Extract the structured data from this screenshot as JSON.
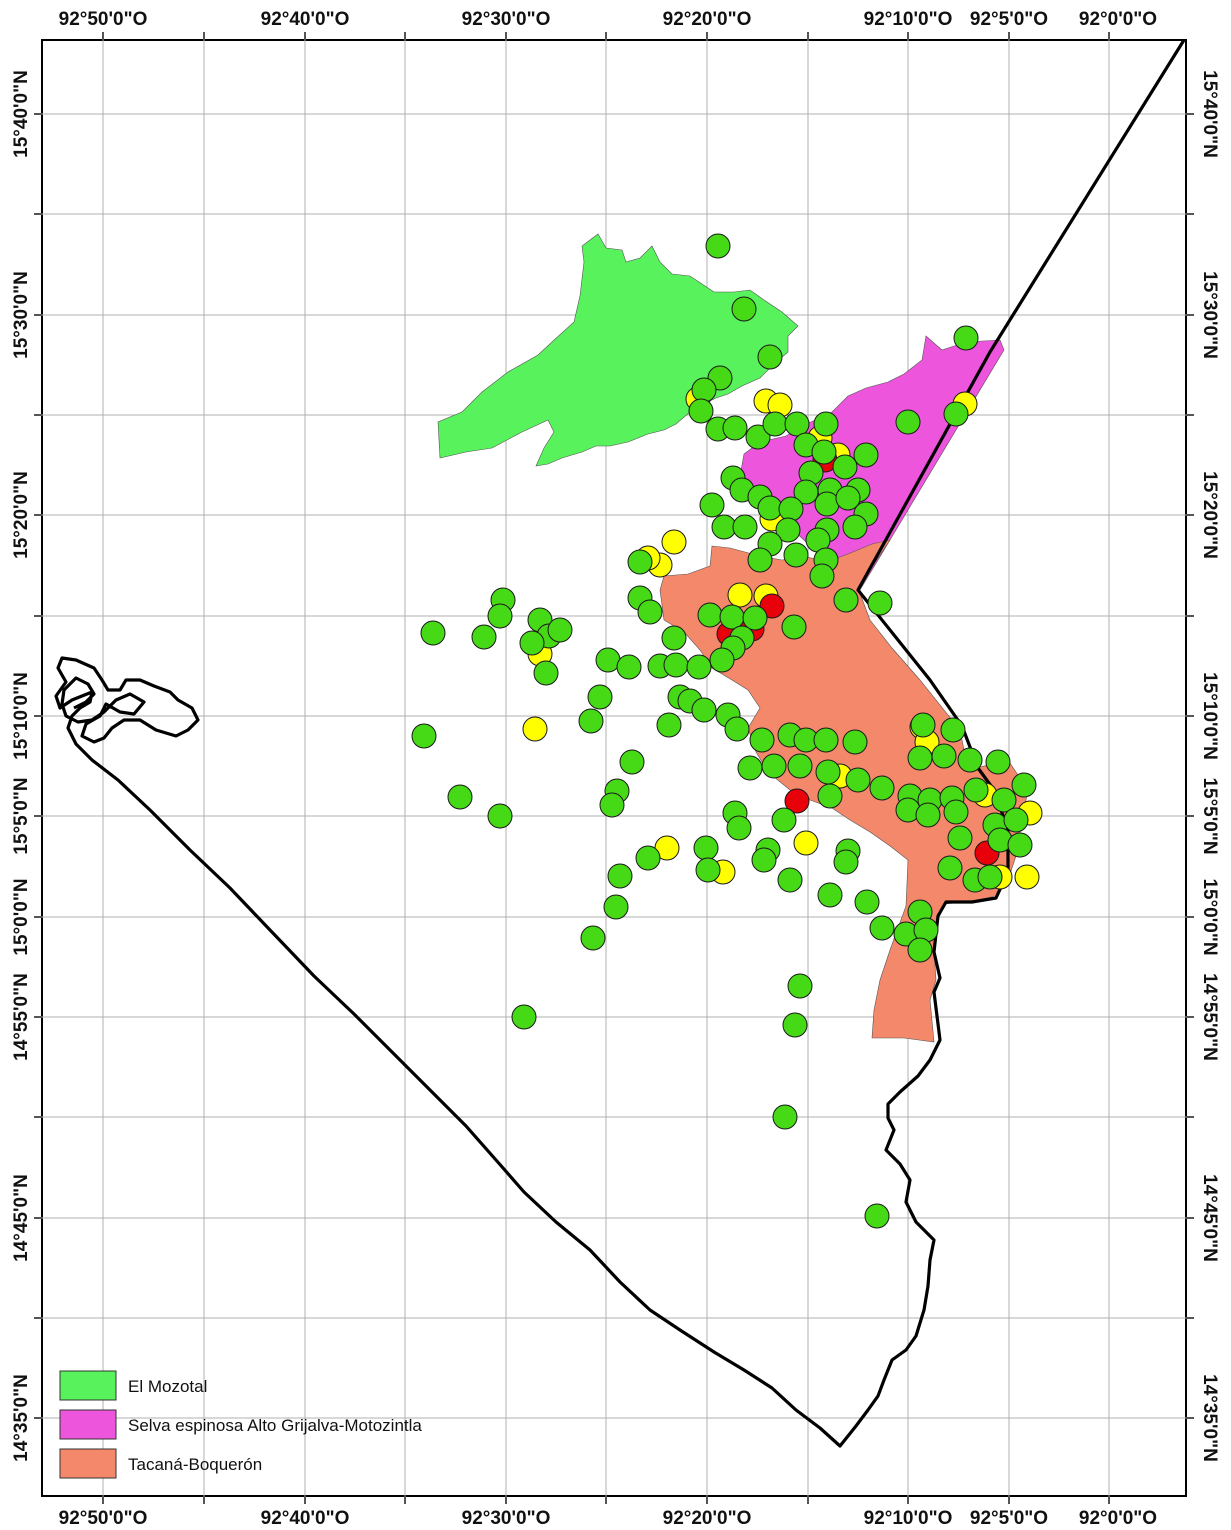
{
  "map": {
    "top_axis_labels": [
      "92°50'0\"O",
      "92°40'0\"O",
      "92°30'0\"O",
      "92°20'0\"O",
      "92°10'0\"O",
      "92°5'0\"O",
      "92°0'0\"O"
    ],
    "bottom_axis_labels": [
      "92°50'0\"O",
      "92°40'0\"O",
      "92°30'0\"O",
      "92°20'0\"O",
      "92°10'0\"O",
      "92°5'0\"O",
      "92°0'0\"O"
    ],
    "left_axis_labels": [
      "15°40'0\"N",
      "15°30'0\"N",
      "15°20'0\"N",
      "15°10'0\"N",
      "15°5'0\"N",
      "15°0'0\"N",
      "14°55'0\"N",
      "14°45'0\"N",
      "14°35'0\"N"
    ],
    "right_axis_labels": [
      "15°40'0\"N",
      "15°30'0\"N",
      "15°20'0\"N",
      "15°10'0\"N",
      "15°5'0\"N",
      "15°0'0\"N",
      "14°55'0\"N",
      "14°45'0\"N",
      "14°35'0\"N"
    ],
    "legend": [
      {
        "label": "El Mozotal",
        "color": "#57f25c"
      },
      {
        "label": "Selva espinosa Alto Grijalva-Motozintla",
        "color": "#ee55dd"
      },
      {
        "label": "Tacaná-Boquerón",
        "color": "#f4886a"
      }
    ],
    "point_colors": {
      "green": "#46d916",
      "yellow": "#ffff00",
      "red": "#e8000b"
    }
  }
}
